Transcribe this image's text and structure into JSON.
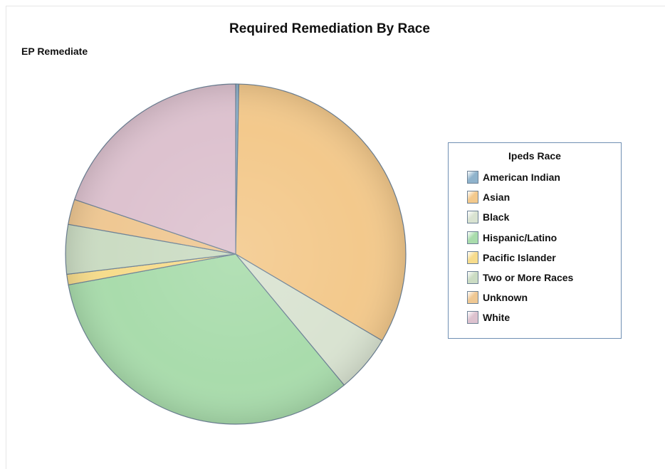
{
  "chart_data": {
    "type": "pie",
    "title": "Required Remediation By Race",
    "subtitle": "EP Remediate",
    "legend_title": "Ipeds Race",
    "legend_position": "right",
    "start_angle_deg": 0,
    "direction": "clockwise",
    "slices": [
      {
        "label": "American Indian",
        "value": 0.3,
        "color": "#8fb3cc"
      },
      {
        "label": "Asian",
        "value": 33.2,
        "color": "#f3c98c"
      },
      {
        "label": "Black",
        "value": 5.5,
        "color": "#d9e3d1"
      },
      {
        "label": "Hispanic/Latino",
        "value": 33.1,
        "color": "#a9dcac"
      },
      {
        "label": "Pacific Islander",
        "value": 1.0,
        "color": "#f7dc8c"
      },
      {
        "label": "Two or More Races",
        "value": 4.7,
        "color": "#cbdcc3"
      },
      {
        "label": "Unknown",
        "value": 2.4,
        "color": "#efc893"
      },
      {
        "label": "White",
        "value": 19.8,
        "color": "#ddc2cf"
      }
    ]
  }
}
